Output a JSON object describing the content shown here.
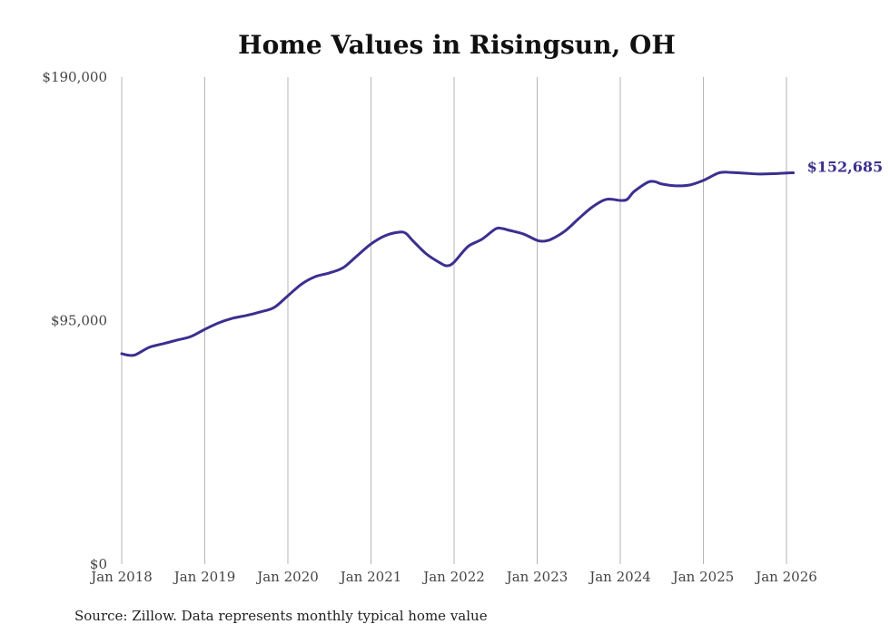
{
  "chart_data": {
    "type": "line",
    "title": "Home Values in Risingsun, OH",
    "source": "Source: Zillow. Data represents monthly typical home value",
    "xlabel": "",
    "ylabel": "",
    "ylim": [
      0,
      190000
    ],
    "y_ticks": [
      {
        "value": 0,
        "label": "$0"
      },
      {
        "value": 95000,
        "label": "$95,000"
      },
      {
        "value": 190000,
        "label": "$190,000"
      }
    ],
    "x_ticks": [
      {
        "value": 2018,
        "label": "Jan 2018"
      },
      {
        "value": 2019,
        "label": "Jan 2019"
      },
      {
        "value": 2020,
        "label": "Jan 2020"
      },
      {
        "value": 2021,
        "label": "Jan 2021"
      },
      {
        "value": 2022,
        "label": "Jan 2022"
      },
      {
        "value": 2023,
        "label": "Jan 2023"
      },
      {
        "value": 2024,
        "label": "Jan 2024"
      },
      {
        "value": 2025,
        "label": "Jan 2025"
      },
      {
        "value": 2026,
        "label": "Jan 2026"
      }
    ],
    "xlim": [
      2018,
      2026.08
    ],
    "grid": "vertical",
    "line_color": "#3b2f8f",
    "end_label": "$152,685",
    "series": [
      {
        "name": "Typical home value",
        "x": [
          2018.0,
          2018.083,
          2018.167,
          2018.333,
          2018.5,
          2018.667,
          2018.833,
          2019.0,
          2019.167,
          2019.333,
          2019.5,
          2019.667,
          2019.833,
          2020.0,
          2020.167,
          2020.333,
          2020.5,
          2020.667,
          2020.833,
          2021.0,
          2021.167,
          2021.333,
          2021.417,
          2021.5,
          2021.667,
          2021.833,
          2021.917,
          2022.0,
          2022.167,
          2022.333,
          2022.5,
          2022.583,
          2022.667,
          2022.833,
          2023.0,
          2023.083,
          2023.167,
          2023.333,
          2023.5,
          2023.667,
          2023.833,
          2024.0,
          2024.083,
          2024.167,
          2024.333,
          2024.417,
          2024.5,
          2024.667,
          2024.833,
          2025.0,
          2025.167,
          2025.25,
          2025.333,
          2025.5,
          2025.667,
          2025.833,
          2026.0,
          2026.083
        ],
        "y": [
          82100,
          81500,
          81700,
          84600,
          86000,
          87400,
          88800,
          91600,
          94100,
          95900,
          97000,
          98400,
          100100,
          104700,
          109300,
          112200,
          113600,
          115700,
          120300,
          124900,
          128100,
          129500,
          129100,
          126300,
          121000,
          117500,
          116400,
          117800,
          123900,
          126700,
          130800,
          130900,
          130200,
          128800,
          126300,
          126000,
          126700,
          129900,
          134800,
          139400,
          142300,
          141900,
          142300,
          145400,
          149000,
          149200,
          148300,
          147600,
          147900,
          149700,
          152400,
          152900,
          152800,
          152500,
          152200,
          152300,
          152600,
          152685
        ]
      }
    ]
  }
}
